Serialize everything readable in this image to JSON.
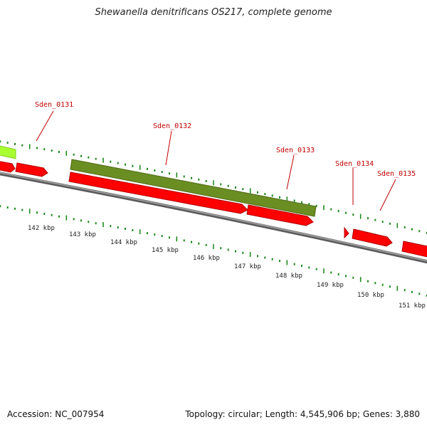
{
  "title": "Shewanella denitrificans OS217, complete genome",
  "footer": {
    "accession": "Accession: NC_007954",
    "summary": "Topology: circular; Length: 4,545,906 bp; Genes: 3,880"
  },
  "colors": {
    "backbone": "#7f7f7f",
    "tick": "#1f8a1f",
    "gene_label": "#c00000",
    "gene_cds": "#ff0000",
    "gene_feature": "#6b8e23",
    "gene_light": "#aaff33"
  },
  "genes": [
    {
      "label": "Sden_0131"
    },
    {
      "label": "Sden_0132"
    },
    {
      "label": "Sden_0133"
    },
    {
      "label": "Sden_0134"
    },
    {
      "label": "Sden_0135"
    }
  ],
  "scale": {
    "ticks": [
      {
        "label": "142 kbp"
      },
      {
        "label": "143 kbp"
      },
      {
        "label": "144 kbp"
      },
      {
        "label": "145 kbp"
      },
      {
        "label": "146 kbp"
      },
      {
        "label": "147 kbp"
      },
      {
        "label": "148 kbp"
      },
      {
        "label": "149 kbp"
      },
      {
        "label": "150 kbp"
      },
      {
        "label": "151 kbp"
      }
    ]
  }
}
